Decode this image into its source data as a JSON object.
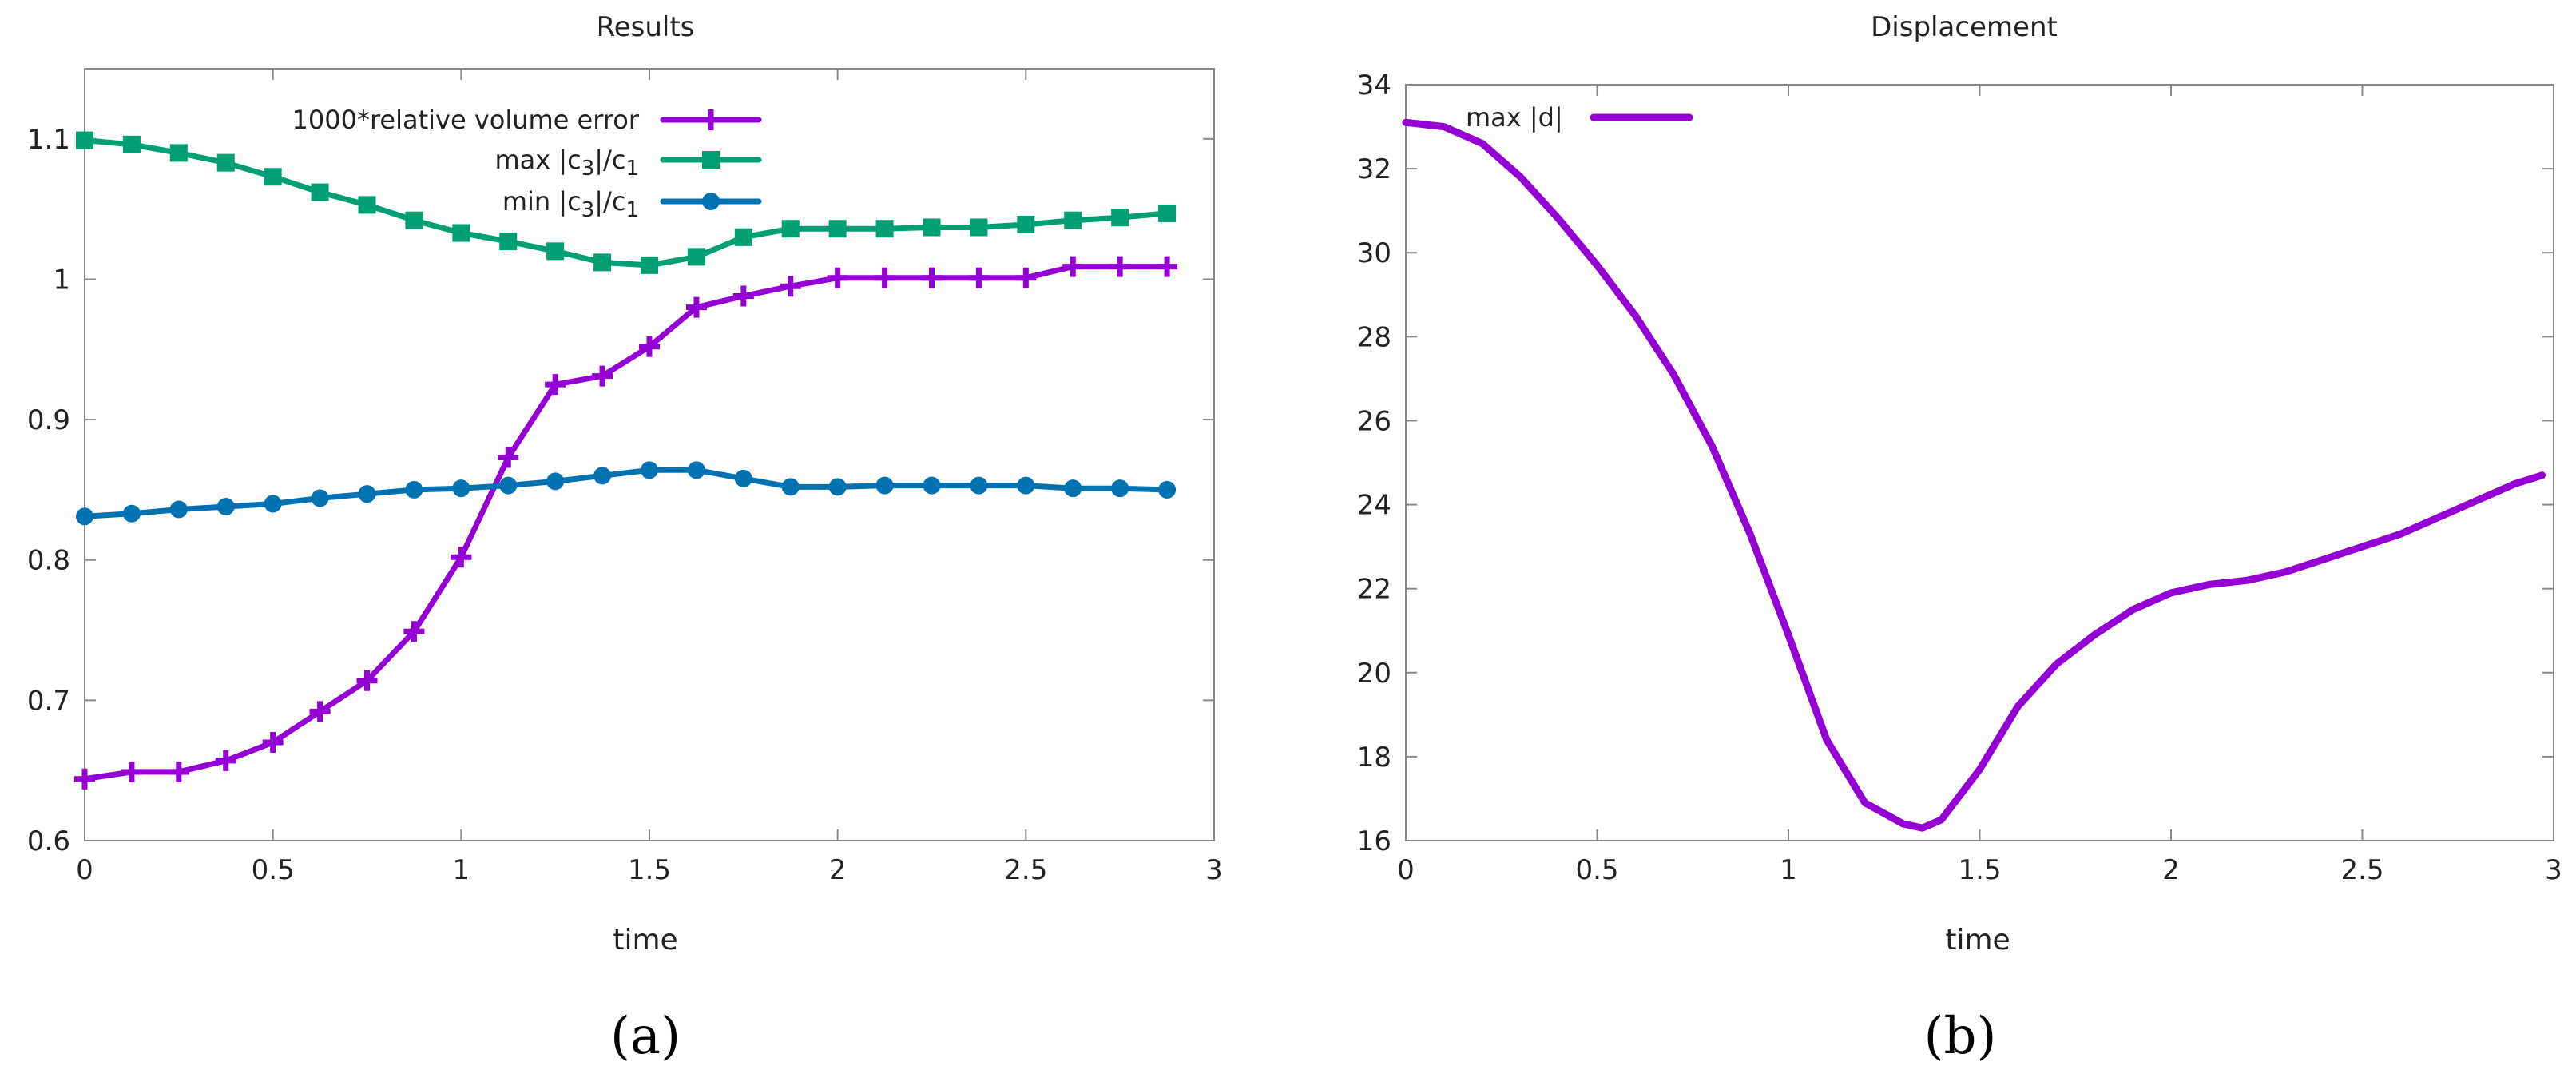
{
  "chart_data": [
    {
      "type": "line",
      "title": "Results",
      "xlabel": "time",
      "ylabel": "",
      "xlim": [
        0,
        3
      ],
      "ylim": [
        0.6,
        1.15
      ],
      "xticks": [
        "0",
        "0.5",
        "1",
        "1.5",
        "2",
        "2.5",
        "3"
      ],
      "yticks": [
        "0.6",
        "0.7",
        "0.8",
        "0.9",
        "1",
        "1.1"
      ],
      "legend_position": "top-right",
      "caption": "(a)",
      "series": [
        {
          "name": "1000*relative volume error",
          "color": "#9400D3",
          "marker": "plus",
          "x": [
            0,
            0.125,
            0.25,
            0.375,
            0.5,
            0.625,
            0.75,
            0.875,
            1.0,
            1.125,
            1.25,
            1.375,
            1.5,
            1.625,
            1.75,
            1.875,
            2.0,
            2.125,
            2.25,
            2.375,
            2.5,
            2.625,
            2.75,
            2.875
          ],
          "y": [
            0.644,
            0.649,
            0.649,
            0.657,
            0.67,
            0.692,
            0.714,
            0.749,
            0.802,
            0.873,
            0.925,
            0.931,
            0.952,
            0.98,
            0.988,
            0.995,
            1.001,
            1.001,
            1.001,
            1.001,
            1.001,
            1.009,
            1.009,
            1.009
          ]
        },
        {
          "name": "max |c_3|/c_1",
          "color": "#009E73",
          "marker": "x-box",
          "x": [
            0,
            0.125,
            0.25,
            0.375,
            0.5,
            0.625,
            0.75,
            0.875,
            1.0,
            1.125,
            1.25,
            1.375,
            1.5,
            1.625,
            1.75,
            1.875,
            2.0,
            2.125,
            2.25,
            2.375,
            2.5,
            2.625,
            2.75,
            2.875
          ],
          "y": [
            1.099,
            1.096,
            1.09,
            1.083,
            1.073,
            1.062,
            1.053,
            1.042,
            1.033,
            1.027,
            1.02,
            1.012,
            1.01,
            1.016,
            1.03,
            1.036,
            1.036,
            1.036,
            1.037,
            1.037,
            1.039,
            1.042,
            1.044,
            1.047
          ]
        },
        {
          "name": "min |c_3|/c_1",
          "color": "#0072B2",
          "marker": "circle",
          "x": [
            0,
            0.125,
            0.25,
            0.375,
            0.5,
            0.625,
            0.75,
            0.875,
            1.0,
            1.125,
            1.25,
            1.375,
            1.5,
            1.625,
            1.75,
            1.875,
            2.0,
            2.125,
            2.25,
            2.375,
            2.5,
            2.625,
            2.75,
            2.875
          ],
          "y": [
            0.831,
            0.833,
            0.836,
            0.838,
            0.84,
            0.844,
            0.847,
            0.85,
            0.851,
            0.853,
            0.856,
            0.86,
            0.864,
            0.864,
            0.858,
            0.852,
            0.852,
            0.853,
            0.853,
            0.853,
            0.853,
            0.851,
            0.851,
            0.85
          ]
        }
      ]
    },
    {
      "type": "line",
      "title": "Displacement",
      "xlabel": "time",
      "ylabel": "",
      "xlim": [
        0,
        3
      ],
      "ylim": [
        16,
        34
      ],
      "xticks": [
        "0",
        "0.5",
        "1",
        "1.5",
        "2",
        "2.5",
        "3"
      ],
      "yticks": [
        "16",
        "18",
        "20",
        "22",
        "24",
        "26",
        "28",
        "30",
        "32",
        "34"
      ],
      "legend_position": "top-left",
      "caption": "(b)",
      "series": [
        {
          "name": "max |d|",
          "color": "#9400D3",
          "x": [
            0,
            0.1,
            0.2,
            0.3,
            0.4,
            0.5,
            0.6,
            0.7,
            0.8,
            0.9,
            1.0,
            1.1,
            1.2,
            1.3,
            1.35,
            1.4,
            1.5,
            1.6,
            1.7,
            1.8,
            1.9,
            2.0,
            2.1,
            2.2,
            2.3,
            2.4,
            2.5,
            2.6,
            2.7,
            2.8,
            2.9,
            2.97
          ],
          "y": [
            33.1,
            33.0,
            32.6,
            31.8,
            30.8,
            29.7,
            28.5,
            27.1,
            25.4,
            23.3,
            20.9,
            18.4,
            16.9,
            16.4,
            16.3,
            16.5,
            17.7,
            19.2,
            20.2,
            20.9,
            21.5,
            21.9,
            22.1,
            22.2,
            22.4,
            22.7,
            23.0,
            23.3,
            23.7,
            24.1,
            24.5,
            24.7
          ]
        }
      ]
    }
  ]
}
